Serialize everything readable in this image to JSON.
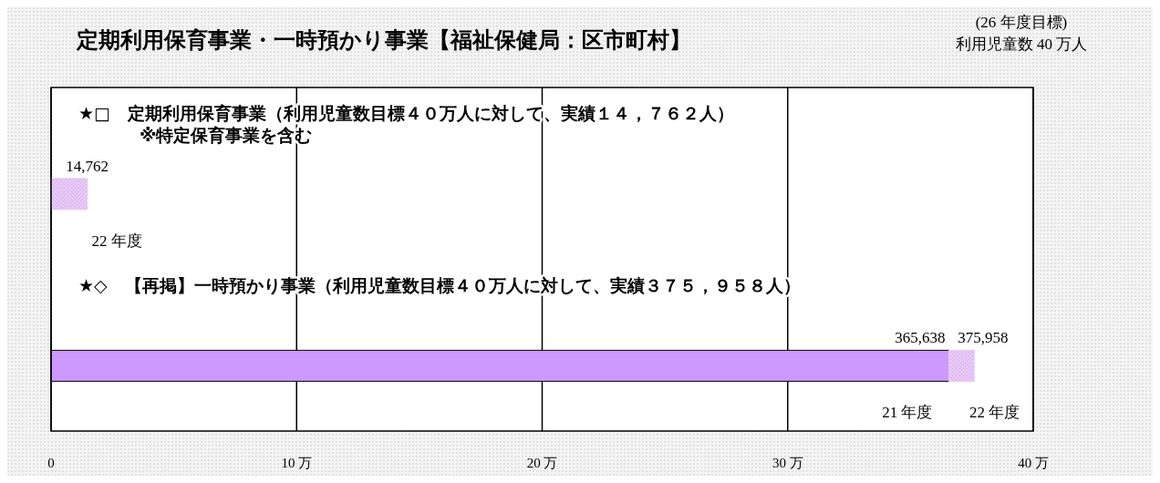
{
  "chart_data": {
    "type": "bar",
    "orientation": "horizontal",
    "stacked": true,
    "title": "定期利用保育事業・一時預かり事業【福祉保健局：区市町村】",
    "annotations": [
      "(26 年度目標)\n利用児童数 40 万人",
      {
        "text": "14,762",
        "x": 1.4762,
        "y": "★□　定期利用保育事業（利用児童数目標４０万人に対して、実績１４，７６２人）\n※特定保育事業を含む"
      },
      {
        "text": "365,638",
        "x": 36.5638,
        "y": "★◇　【再掲】一時預かり事業（利用児童数目標４０万人に対して、実績３７５，９５８人）"
      },
      {
        "text": "375,958",
        "x": 37.5958,
        "y": "★◇　【再掲】一時預かり事業（利用児童数目標４０万人に対して、実績３７５，９５８人）"
      }
    ],
    "categories": [
      "★□　定期利用保育事業（利用児童数目標４０万人に対して、実績１４，７６２人）\n※特定保育事業を含む",
      "★◇　【再掲】一時預かり事業（利用児童数目標４０万人に対して、実績３７５，９５８人）"
    ],
    "series": [
      {
        "name": "21 年度",
        "color": "#cc99ff",
        "values": [
          null,
          36.5638
        ]
      },
      {
        "name": "22 年度",
        "color": "#e6c8f5",
        "values": [
          1.4762,
          1.032
        ]
      }
    ],
    "xlim": [
      0,
      40
    ],
    "xticks": [
      0,
      {
        "value": 10,
        "label": "10 万"
      },
      {
        "value": 20,
        "label": "20 万"
      },
      {
        "value": 30,
        "label": "30 万"
      },
      {
        "value": 40,
        "label": "40 万"
      }
    ],
    "grid": "x"
  }
}
